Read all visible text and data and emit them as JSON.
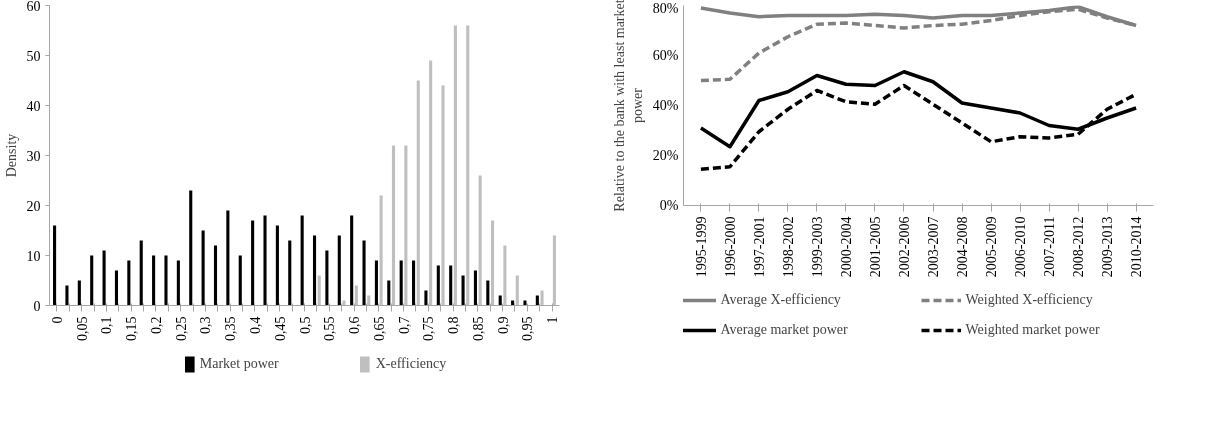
{
  "chart_data": [
    {
      "type": "bar",
      "ylabel": "Density",
      "categories": [
        "0",
        null,
        "0,05",
        null,
        "0,1",
        null,
        "0,15",
        null,
        "0,2",
        null,
        "0,25",
        null,
        "0,3",
        null,
        "0,35",
        null,
        "0,4",
        null,
        "0,45",
        null,
        "0,5",
        null,
        "0,55",
        null,
        "0,6",
        null,
        "0,65",
        null,
        "0,7",
        null,
        "0,75",
        null,
        "0,8",
        null,
        "0,85",
        null,
        "0,9",
        null,
        "0,95",
        null,
        "1"
      ],
      "series": [
        {
          "name": "Market power",
          "color": "#000000",
          "values": [
            16,
            4,
            5,
            10,
            11,
            7,
            9,
            13,
            10,
            10,
            9,
            23,
            15,
            12,
            19,
            10,
            17,
            18,
            16,
            13,
            18,
            14,
            11,
            14,
            18,
            13,
            9,
            5,
            9,
            9,
            3,
            8,
            8,
            6,
            7,
            5,
            2,
            1,
            1,
            2,
            0
          ]
        },
        {
          "name": "X-efficiency",
          "color": "#bfbfbf",
          "values": [
            0,
            0,
            0,
            0,
            0,
            0,
            0,
            0,
            0,
            0,
            0,
            0,
            0,
            0,
            0,
            0,
            0,
            0,
            0,
            0,
            0,
            6,
            0,
            1,
            4,
            2,
            22,
            32,
            32,
            45,
            49,
            44,
            56,
            56,
            26,
            17,
            12,
            6,
            0,
            3,
            14
          ]
        }
      ],
      "ylim": [
        0,
        60
      ],
      "yticks": [
        0,
        10,
        20,
        30,
        40,
        50,
        60
      ],
      "grid": false,
      "legend": "bottom"
    },
    {
      "type": "line",
      "ylabel": "Relative to the bank with least market power",
      "categories": [
        "1995-1999",
        "1996-2000",
        "1997-2001",
        "1998-2002",
        "1999-2003",
        "2000-2004",
        "2001-2005",
        "2002-2006",
        "2003-2007",
        "2004-2008",
        "2005-2009",
        "2006-2010",
        "2007-2011",
        "2008-2012",
        "2009-2013",
        "2010-2014"
      ],
      "series": [
        {
          "name": "Average X-efficiency",
          "color": "#808080",
          "line_style": "solid",
          "values": [
            79,
            77,
            75.5,
            76,
            76,
            76,
            76.5,
            76,
            75,
            76,
            76,
            77,
            78,
            79.5,
            75.5,
            72
          ]
        },
        {
          "name": "Weighted X-efficiency",
          "color": "#808080",
          "line_style": "dashed",
          "values": [
            50,
            50.5,
            61,
            67.5,
            72.5,
            73,
            72,
            71,
            72,
            72.5,
            74,
            76,
            77.5,
            78.5,
            75,
            72
          ]
        },
        {
          "name": "Average market power",
          "color": "#000000",
          "line_style": "solid",
          "values": [
            31,
            23.5,
            42,
            45.5,
            52,
            48.5,
            48,
            53.5,
            49.5,
            41,
            39,
            37,
            32,
            30.5,
            35,
            39
          ]
        },
        {
          "name": "Weighted market power",
          "color": "#000000",
          "line_style": "dashed",
          "values": [
            14.5,
            15.5,
            29.5,
            38.5,
            46,
            41.5,
            40.5,
            48,
            40.5,
            33,
            25.5,
            27.5,
            27,
            28.5,
            38.5,
            44.5
          ]
        }
      ],
      "ylim": [
        0,
        80
      ],
      "yticks": [
        {
          "value": 0,
          "label": "0%"
        },
        {
          "value": 20,
          "label": "20%"
        },
        {
          "value": 40,
          "label": "40%"
        },
        {
          "value": 60,
          "label": "60%"
        },
        {
          "value": 80,
          "label": "80%"
        }
      ],
      "grid": false,
      "legend": "bottom"
    }
  ]
}
